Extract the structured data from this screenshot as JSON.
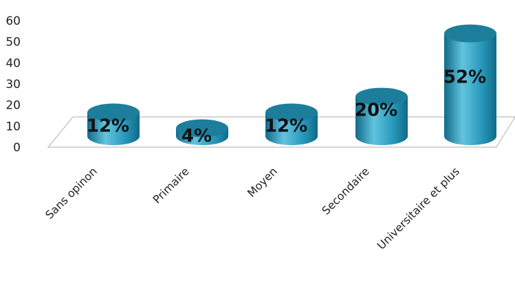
{
  "chart_data": {
    "type": "bar",
    "style": "3d-cylinder",
    "categories": [
      "Sans opinon",
      "Primaire",
      "Moyen",
      "Secondaire",
      "Universitaire et plus"
    ],
    "values": [
      12,
      4,
      12,
      20,
      52
    ],
    "data_labels": [
      "12%",
      "4%",
      "12%",
      "20%",
      "52%"
    ],
    "ylim": [
      0,
      60
    ],
    "yticks": [
      "0",
      "10",
      "20",
      "30",
      "40",
      "50",
      "60"
    ],
    "grid": false,
    "legend": "none",
    "colors": {
      "bar_side": "#2a9bbd",
      "bar_dark": "#0f6b88",
      "bar_light": "#63c3de",
      "bar_top": "#1d7e9c",
      "floor": "#ffffff",
      "floor_stroke": "#c9c9c9"
    }
  }
}
